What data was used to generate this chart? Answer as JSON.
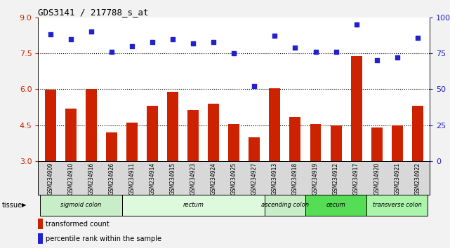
{
  "title": "GDS3141 / 217788_s_at",
  "samples": [
    "GSM234909",
    "GSM234910",
    "GSM234916",
    "GSM234926",
    "GSM234911",
    "GSM234914",
    "GSM234915",
    "GSM234923",
    "GSM234924",
    "GSM234925",
    "GSM234927",
    "GSM234913",
    "GSM234918",
    "GSM234919",
    "GSM234912",
    "GSM234917",
    "GSM234920",
    "GSM234921",
    "GSM234922"
  ],
  "bar_values": [
    5.98,
    5.2,
    6.0,
    4.2,
    4.6,
    5.3,
    5.9,
    5.15,
    5.4,
    4.55,
    4.0,
    6.05,
    4.85,
    4.55,
    4.5,
    7.4,
    4.4,
    4.5,
    5.3
  ],
  "dot_values": [
    88,
    85,
    90,
    76,
    80,
    83,
    85,
    82,
    83,
    75,
    52,
    87,
    79,
    76,
    76,
    95,
    70,
    72,
    86
  ],
  "bar_color": "#cc2200",
  "dot_color": "#2222cc",
  "ylim_left": [
    3,
    9
  ],
  "ylim_right": [
    0,
    100
  ],
  "yticks_left": [
    3,
    4.5,
    6,
    7.5,
    9
  ],
  "yticks_right": [
    0,
    25,
    50,
    75,
    100
  ],
  "ytick_labels_right": [
    "0",
    "25",
    "50",
    "75",
    "100%"
  ],
  "hlines": [
    4.5,
    6.0,
    7.5
  ],
  "tissue_groups": [
    {
      "label": "sigmoid colon",
      "start": 0,
      "end": 4,
      "color": "#c8eec8"
    },
    {
      "label": "rectum",
      "start": 4,
      "end": 11,
      "color": "#ddfadd"
    },
    {
      "label": "ascending colon",
      "start": 11,
      "end": 13,
      "color": "#c8eec8"
    },
    {
      "label": "cecum",
      "start": 13,
      "end": 16,
      "color": "#66e066"
    },
    {
      "label": "transverse colon",
      "start": 16,
      "end": 19,
      "color": "#aaf0aa"
    }
  ],
  "legend_bar_label": "transformed count",
  "legend_dot_label": "percentile rank within the sample",
  "tissue_label": "tissue",
  "fig_bg": "#f2f2f2",
  "plot_bg": "#ffffff",
  "xtick_bg": "#d8d8d8"
}
